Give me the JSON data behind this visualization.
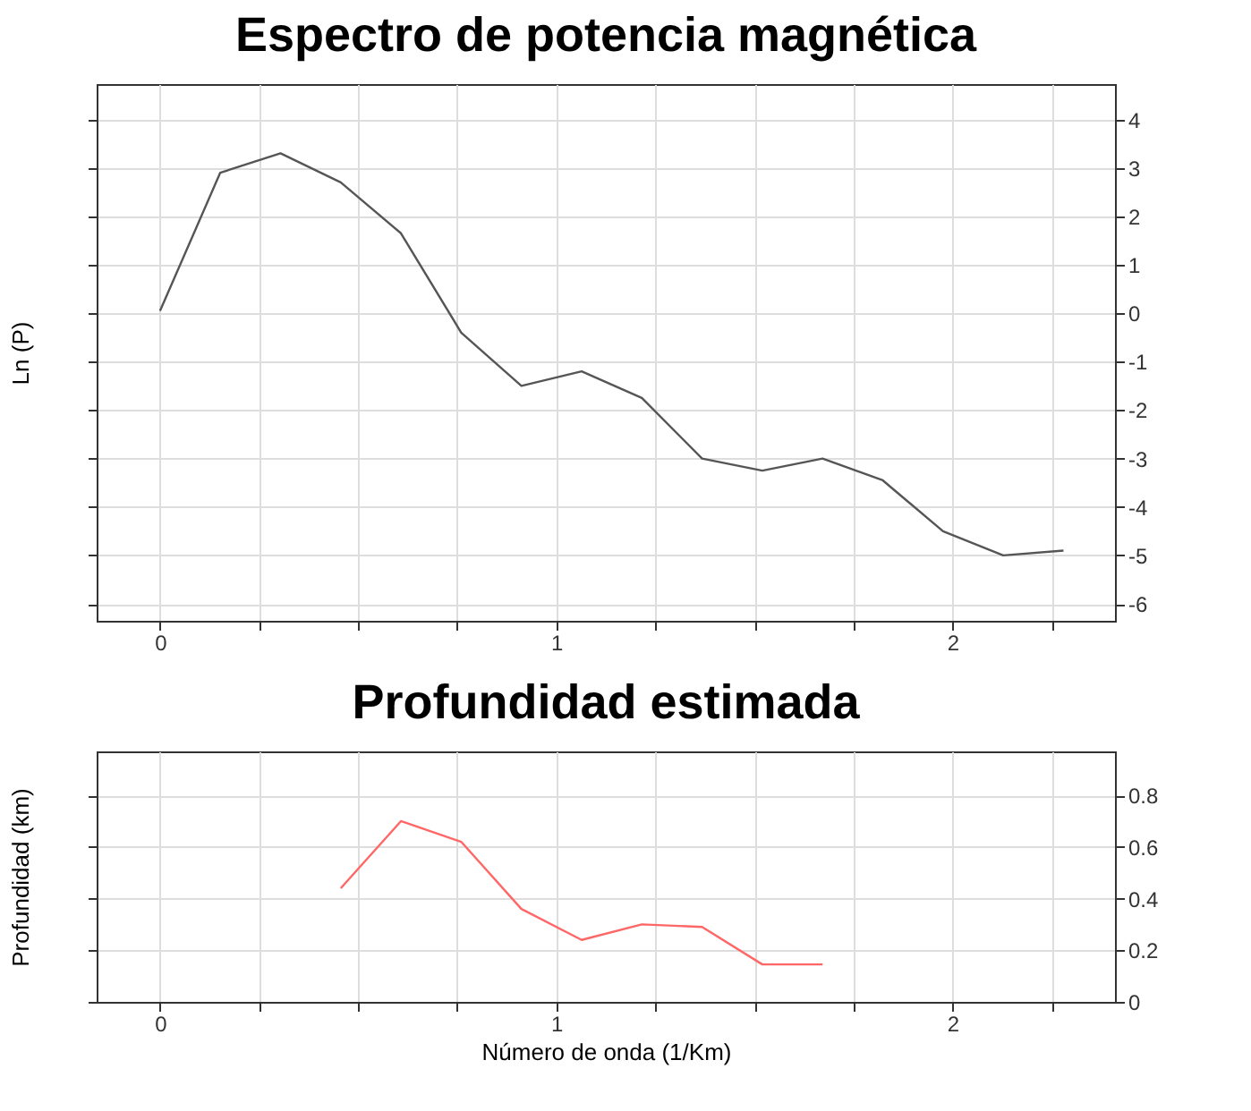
{
  "chart_data": [
    {
      "type": "line",
      "title": "Espectro de potencia magnética",
      "ylabel": "Ln (P)",
      "series": [
        {
          "color": "#555555",
          "x": [
            0,
            0.152,
            0.304,
            0.456,
            0.608,
            0.76,
            0.912,
            1.064,
            1.216,
            1.368,
            1.52,
            1.672,
            1.824,
            1.976,
            2.128,
            2.28
          ],
          "values": [
            0.05,
            2.9,
            3.3,
            2.7,
            1.65,
            -0.4,
            -1.5,
            -1.2,
            -1.75,
            -3.0,
            -3.25,
            -3.0,
            -3.45,
            -4.5,
            -5.0,
            -4.9
          ]
        }
      ],
      "xlim": [
        -0.16,
        2.41
      ],
      "xticks": [
        0,
        {
          "value": 0.25,
          "label": null
        },
        {
          "value": 0.5,
          "label": null
        },
        {
          "value": 0.75,
          "label": null
        },
        1,
        {
          "value": 1.25,
          "label": null
        },
        {
          "value": 1.5,
          "label": null
        },
        {
          "value": 1.75,
          "label": null
        },
        2,
        {
          "value": 2.25,
          "label": null
        }
      ],
      "ylim": [
        -6.35,
        4.73
      ],
      "yticks": [
        -6,
        -5,
        -4,
        -3,
        -2,
        -1,
        0,
        1,
        2,
        3,
        4
      ],
      "grid": true
    },
    {
      "type": "line",
      "title": "Profundidad estimada",
      "ylabel": "Profundidad (km)",
      "xlabel": "Número de onda (1/Km)",
      "series": [
        {
          "color": "#ff6666",
          "x": [
            0.456,
            0.608,
            0.76,
            0.912,
            1.064,
            1.216,
            1.368,
            1.52,
            1.672
          ],
          "values": [
            0.44,
            0.7,
            0.62,
            0.36,
            0.24,
            0.3,
            0.29,
            0.145,
            0.145
          ]
        }
      ],
      "xlim": [
        -0.16,
        2.41
      ],
      "xticks": [
        0,
        {
          "value": 0.25,
          "label": null
        },
        {
          "value": 0.5,
          "label": null
        },
        {
          "value": 0.75,
          "label": null
        },
        1,
        {
          "value": 1.25,
          "label": null
        },
        {
          "value": 1.5,
          "label": null
        },
        {
          "value": 1.75,
          "label": null
        },
        2,
        {
          "value": 2.25,
          "label": null
        }
      ],
      "ylim": [
        0,
        0.97
      ],
      "yticks": [
        0,
        0.2,
        0.4,
        0.6,
        0.8
      ],
      "grid": true
    }
  ]
}
